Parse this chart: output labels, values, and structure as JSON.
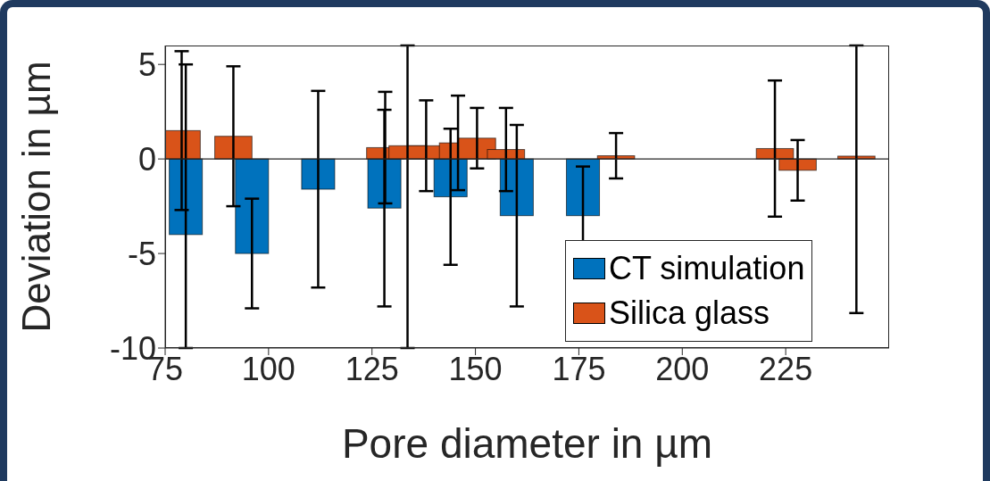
{
  "chart_data": {
    "type": "bar",
    "xlabel": "Pore diameter in µm",
    "ylabel": "Deviation in µm",
    "xlim": [
      75,
      250
    ],
    "xticks": [
      75,
      100,
      125,
      150,
      175,
      200,
      225
    ],
    "ylim": [
      -10,
      6
    ],
    "yticks": [
      -10,
      -5,
      0,
      5
    ],
    "ref_lines": [
      {
        "axis": "y",
        "value": 0,
        "color": "#262626"
      }
    ],
    "legend": "bottom right",
    "grid": false,
    "series": [
      {
        "name": "CT simulation",
        "color": "#0072bd",
        "x": [
          80,
          96,
          112,
          128,
          144,
          160,
          176
        ],
        "values": [
          -4,
          -5,
          -1.6,
          -2.6,
          -2,
          -3,
          -3
        ],
        "errors": [
          [
            -10,
            5
          ],
          2.9,
          5.2,
          5.2,
          3.6,
          4.8,
          2.6
        ]
      },
      {
        "name": "Silica glass",
        "color": "#d95319",
        "x": [
          79,
          91.5,
          128.2,
          133.6,
          138.1,
          145.8,
          150.4,
          157.4,
          184,
          222.4,
          227.9,
          242.1
        ],
        "values": [
          1.5,
          1.2,
          0.6,
          0.7,
          0.7,
          0.85,
          1.1,
          0.5,
          0.17,
          0.55,
          -0.6,
          0.15
        ],
        "errors": [
          4.2,
          3.7,
          2.95,
          [
            -10,
            6
          ],
          2.4,
          2.5,
          1.6,
          2.2,
          1.2,
          3.6,
          1.6,
          [
            -8.15,
            6
          ]
        ]
      }
    ]
  }
}
